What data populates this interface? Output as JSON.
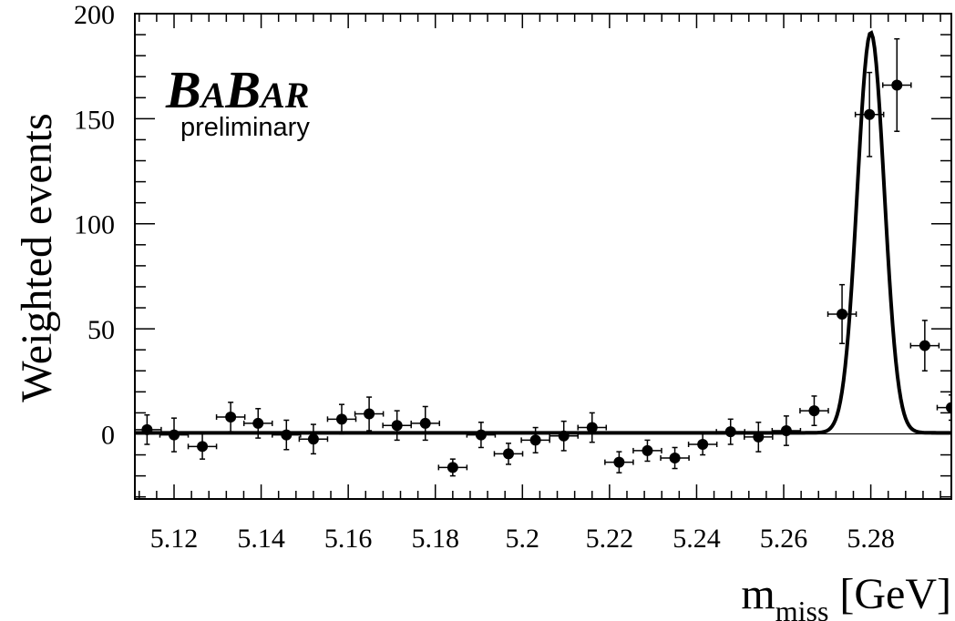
{
  "chart_data": {
    "type": "scatter",
    "xlabel": "m",
    "xlabel_sub": "miss",
    "xunit": "[GeV]",
    "ylabel": "Weighted events",
    "xlim": [
      5.111,
      5.2985
    ],
    "ylim": [
      -31,
      200
    ],
    "xticks": [
      5.12,
      5.14,
      5.16,
      5.18,
      5.2,
      5.22,
      5.24,
      5.26,
      5.28
    ],
    "xtick_labels": [
      "5.12",
      "5.14",
      "5.16",
      "5.18",
      "5.2",
      "5.22",
      "5.24",
      "5.26",
      "5.28"
    ],
    "yticks": [
      0,
      50,
      100,
      150,
      200
    ],
    "ytick_labels": [
      "0",
      "50",
      "100",
      "150",
      "200"
    ],
    "logo": {
      "text": "BABAR",
      "sub": "preliminary"
    },
    "bin_half_width": 0.00325,
    "points": [
      {
        "x": 5.1138,
        "y": 2,
        "err": 7
      },
      {
        "x": 5.12,
        "y": -0.5,
        "err": 8
      },
      {
        "x": 5.1265,
        "y": -6,
        "err": 6
      },
      {
        "x": 5.133,
        "y": 8,
        "err": 7
      },
      {
        "x": 5.1393,
        "y": 5,
        "err": 7
      },
      {
        "x": 5.1458,
        "y": -0.5,
        "err": 7
      },
      {
        "x": 5.152,
        "y": -2.5,
        "err": 7
      },
      {
        "x": 5.1585,
        "y": 7,
        "err": 7
      },
      {
        "x": 5.1648,
        "y": 9.5,
        "err": 8
      },
      {
        "x": 5.1712,
        "y": 4,
        "err": 7
      },
      {
        "x": 5.1777,
        "y": 5,
        "err": 8
      },
      {
        "x": 5.184,
        "y": -16,
        "err": 4
      },
      {
        "x": 5.1905,
        "y": -0.5,
        "err": 6
      },
      {
        "x": 5.1968,
        "y": -9.5,
        "err": 5
      },
      {
        "x": 5.203,
        "y": -3,
        "err": 6
      },
      {
        "x": 5.2095,
        "y": -1,
        "err": 7
      },
      {
        "x": 5.216,
        "y": 3,
        "err": 7
      },
      {
        "x": 5.2222,
        "y": -13.5,
        "err": 5
      },
      {
        "x": 5.2287,
        "y": -8,
        "err": 5
      },
      {
        "x": 5.235,
        "y": -11.5,
        "err": 5
      },
      {
        "x": 5.2414,
        "y": -5,
        "err": 5
      },
      {
        "x": 5.2478,
        "y": 1,
        "err": 6
      },
      {
        "x": 5.2542,
        "y": -1.5,
        "err": 7
      },
      {
        "x": 5.2606,
        "y": 1.5,
        "err": 7
      },
      {
        "x": 5.267,
        "y": 11,
        "err": 7
      },
      {
        "x": 5.2734,
        "y": 57,
        "err": 14
      },
      {
        "x": 5.2797,
        "y": 152,
        "err": 20
      },
      {
        "x": 5.286,
        "y": 166,
        "err": 22
      },
      {
        "x": 5.2924,
        "y": 42,
        "err": 12
      },
      {
        "x": 5.2985,
        "y": 12.5,
        "err": 6
      }
    ],
    "fit": {
      "baseline": 0.5,
      "amplitude": 190.5,
      "mean": 5.28,
      "sigma": 0.0031
    }
  }
}
